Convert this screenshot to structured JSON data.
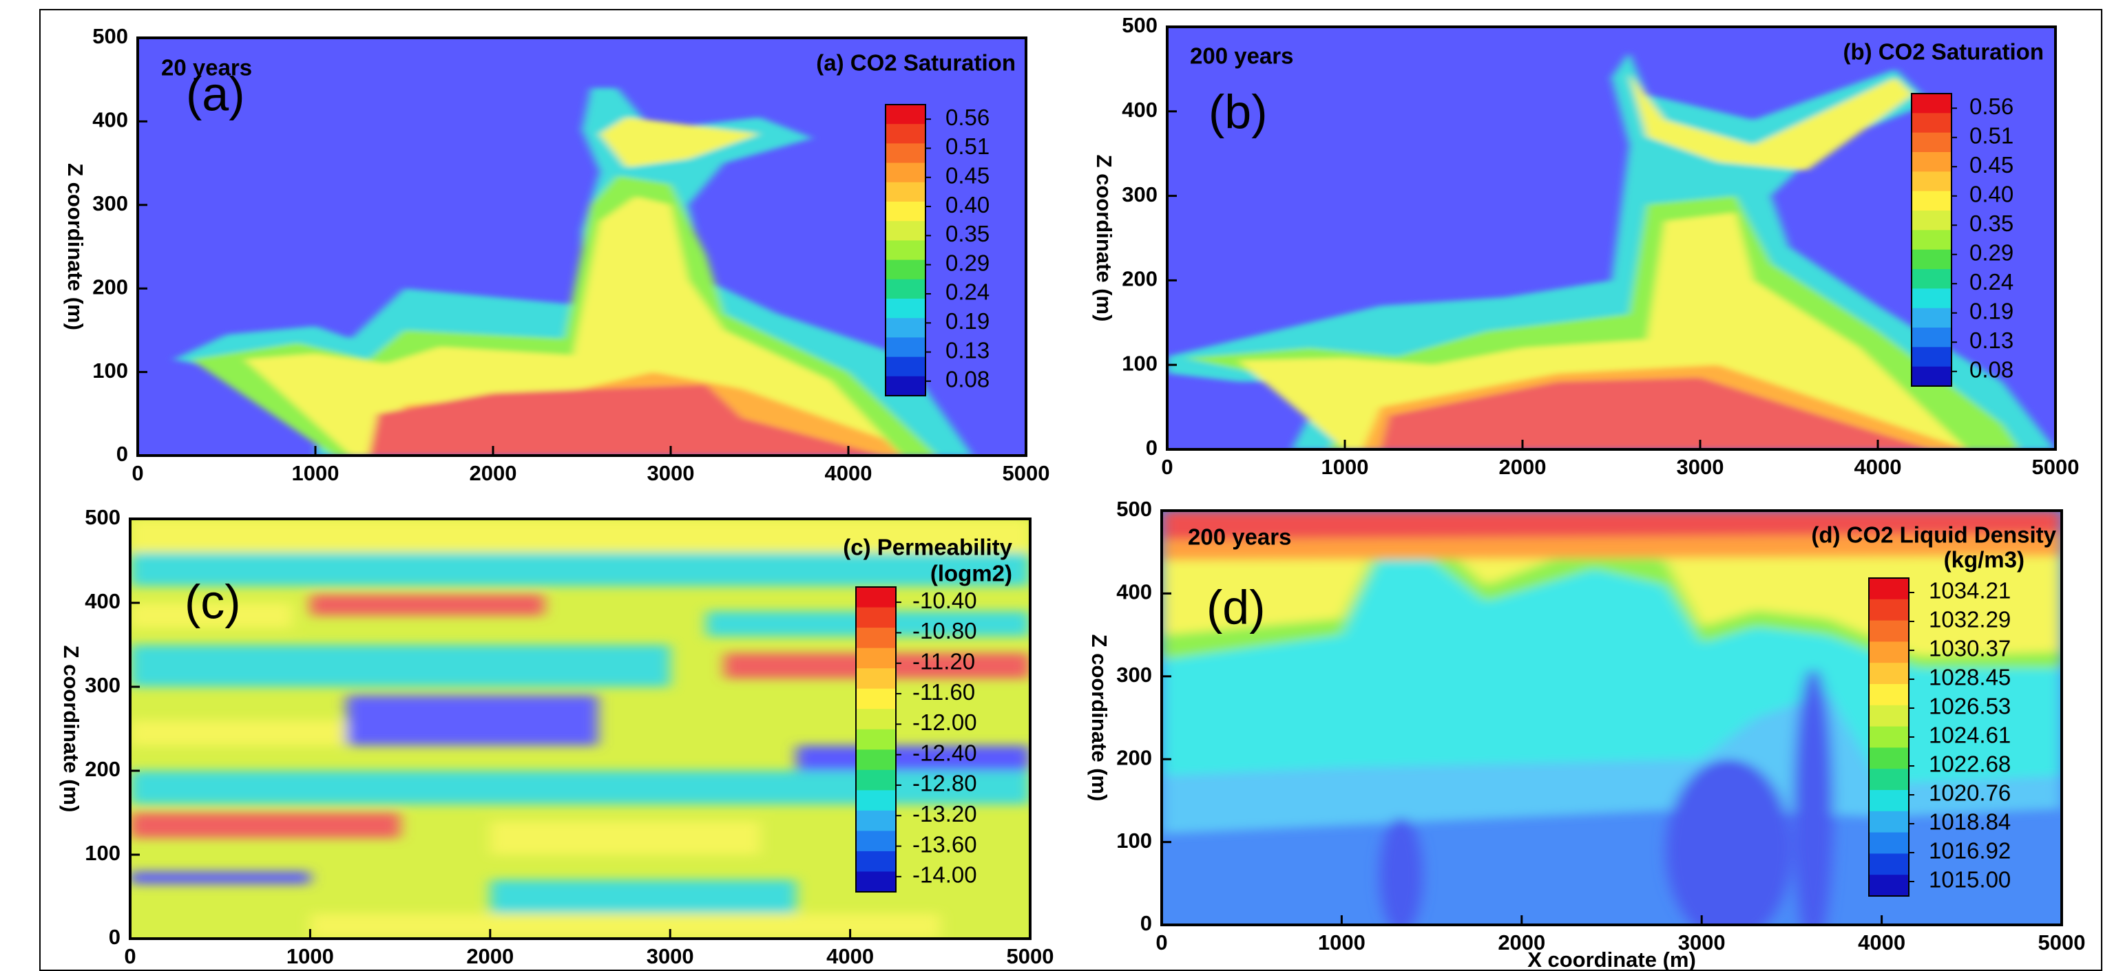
{
  "chart_data": [
    {
      "type": "contour",
      "title": "(a) CO2 Saturation",
      "annotation": "20 years",
      "panel_label": "(a)",
      "panel_label_color": "#ffffff",
      "ylabel": "Z coordinate (m)",
      "xlim": [
        0,
        5000
      ],
      "xticks": [
        0,
        1000,
        2000,
        3000,
        4000,
        5000
      ],
      "ylim": [
        0,
        500
      ],
      "yticks": [
        0,
        100,
        200,
        300,
        400,
        500
      ],
      "colorbar_levels": [
        0.56,
        0.51,
        0.45,
        {
          "value": 0.4,
          "label": "0.40"
        },
        0.35,
        0.29,
        0.24,
        0.19,
        0.13,
        0.08
      ],
      "colorbar_colors": [
        "#e8101a",
        "#f04020",
        "#f87028",
        "#ffa030",
        "#ffc838",
        "#fff040",
        "#d8f040",
        "#a0f038",
        "#50e048",
        "#20d888",
        "#20e0e0",
        "#30b0f0",
        "#2080f0",
        "#1040e0",
        "#1010c0"
      ]
    },
    {
      "type": "contour",
      "title": "(b) CO2 Saturation",
      "annotation": "200 years",
      "panel_label": "(b)",
      "panel_label_color": "#ffffff",
      "ylabel": "Z coordinate (m)",
      "xlim": [
        0,
        5000
      ],
      "xticks": [
        0,
        1000,
        2000,
        3000,
        4000,
        5000
      ],
      "ylim": [
        0,
        500
      ],
      "yticks": [
        0,
        100,
        200,
        300,
        400,
        500
      ],
      "colorbar_levels": [
        0.56,
        0.51,
        0.45,
        {
          "value": 0.4,
          "label": "0.40"
        },
        0.35,
        0.29,
        0.24,
        0.19,
        0.13,
        0.08
      ],
      "colorbar_colors": [
        "#e8101a",
        "#f04020",
        "#f87028",
        "#ffa030",
        "#ffc838",
        "#fff040",
        "#d8f040",
        "#a0f038",
        "#50e048",
        "#20d888",
        "#20e0e0",
        "#30b0f0",
        "#2080f0",
        "#1040e0",
        "#1010c0"
      ]
    },
    {
      "type": "contour",
      "title": "(c) Permeability",
      "colorbar_label": "(logm2)",
      "panel_label": "(c)",
      "panel_label_color": "#000000",
      "ylabel": "Z coordinate (m)",
      "xlim": [
        0,
        5000
      ],
      "xticks": [
        0,
        1000,
        2000,
        3000,
        4000,
        5000
      ],
      "ylim": [
        0,
        500
      ],
      "yticks": [
        0,
        100,
        200,
        300,
        400,
        500
      ],
      "colorbar_levels": [
        {
          "value": -10.4,
          "label": "-10.40"
        },
        {
          "value": -10.8,
          "label": "-10.80"
        },
        {
          "value": -11.2,
          "label": "-11.20"
        },
        {
          "value": -11.6,
          "label": "-11.60"
        },
        {
          "value": -12,
          "label": "-12.00"
        },
        {
          "value": -12.4,
          "label": "-12.40"
        },
        {
          "value": -12.8,
          "label": "-12.80"
        },
        {
          "value": -13.2,
          "label": "-13.20"
        },
        {
          "value": -13.6,
          "label": "-13.60"
        },
        {
          "value": -14,
          "label": "-14.00"
        }
      ],
      "colorbar_colors": [
        "#e8101a",
        "#f04020",
        "#f87028",
        "#ffa030",
        "#ffc838",
        "#fff040",
        "#d8f040",
        "#a0f038",
        "#50e048",
        "#20d888",
        "#20e0e0",
        "#30b0f0",
        "#2080f0",
        "#1040e0",
        "#1010c0"
      ]
    },
    {
      "type": "contour",
      "title": "(d) CO2 Liquid Density",
      "colorbar_label": "(kg/m3)",
      "annotation": "200 years",
      "panel_label": "(d)",
      "panel_label_color": "#000000",
      "xlabel": "X coordinate (m)",
      "ylabel": "Z coordinate (m)",
      "xlim": [
        0,
        5000
      ],
      "xticks": [
        0,
        1000,
        2000,
        3000,
        4000,
        5000
      ],
      "ylim": [
        0,
        500
      ],
      "yticks": [
        0,
        100,
        200,
        300,
        400,
        500
      ],
      "colorbar_levels": [
        1034.21,
        1032.29,
        1030.37,
        1028.45,
        1026.53,
        1024.61,
        1022.68,
        1020.76,
        1018.84,
        1016.92,
        {
          "value": 1015,
          "label": "1015.00"
        }
      ],
      "colorbar_colors": [
        "#e8101a",
        "#f04020",
        "#f87028",
        "#ffa030",
        "#ffc838",
        "#fff040",
        "#d8f040",
        "#a0f038",
        "#50e048",
        "#20d888",
        "#20e0e0",
        "#30b0f0",
        "#2080f0",
        "#1040e0",
        "#1010c0"
      ]
    }
  ]
}
